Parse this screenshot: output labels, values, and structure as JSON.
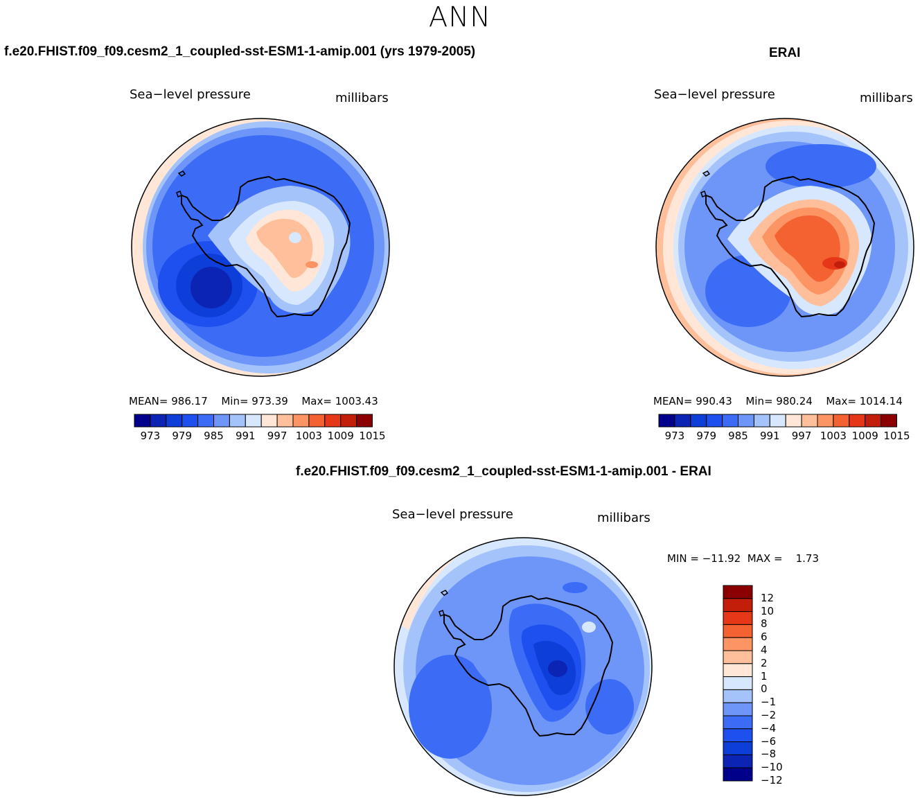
{
  "title": "ANN",
  "palette": [
    "#00008b",
    "#0b24b4",
    "#0d3ed8",
    "#1e50f0",
    "#3c6cf5",
    "#6e96f8",
    "#a5c3fb",
    "#d7e7fd",
    "#ffe6d7",
    "#ffbf9b",
    "#fc9464",
    "#f56232",
    "#e63818",
    "#c21e0a",
    "#8b0000"
  ],
  "panels": [
    {
      "case_title": "f.e20.FHIST.f09_f09.cesm2_1_coupled-sst-ESM1-1-amip.001 (yrs 1979-2005)",
      "variable": "Sea−level pressure",
      "units": "millibars",
      "mean_label": "MEAN=",
      "mean": "986.17",
      "min_label": "Min=",
      "min": "973.39",
      "max_label": "Max=",
      "max": "1003.43",
      "colorbar_ticks": [
        "973",
        "979",
        "985",
        "991",
        "997",
        "1003",
        "1009",
        "1015"
      ]
    },
    {
      "case_title": "ERAI",
      "variable": "Sea−level pressure",
      "units": "millibars",
      "mean_label": "MEAN=",
      "mean": "990.43",
      "min_label": "Min=",
      "min": "980.24",
      "max_label": "Max=",
      "max": "1014.14",
      "colorbar_ticks": [
        "973",
        "979",
        "985",
        "991",
        "997",
        "1003",
        "1009",
        "1015"
      ]
    }
  ],
  "diff_panel": {
    "case_title": "f.e20.FHIST.f09_f09.cesm2_1_coupled-sst-ESM1-1-amip.001 - ERAI",
    "variable": "Sea−level pressure",
    "units": "millibars",
    "minmax_text": "MIN = −11.92  MAX =    1.73",
    "colorbar_ticks": [
      "12",
      "10",
      "8",
      "6",
      "4",
      "2",
      "1",
      "0",
      "−1",
      "−2",
      "−4",
      "−6",
      "−8",
      "−10",
      "−12"
    ]
  }
}
